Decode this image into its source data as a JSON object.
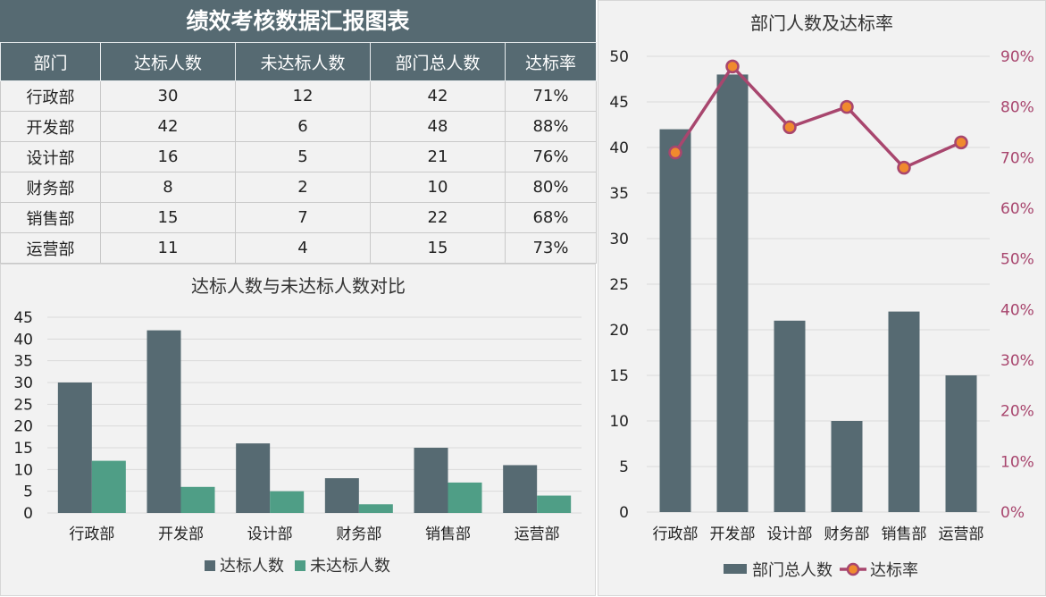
{
  "report": {
    "title": "绩效考核数据汇报图表",
    "headers": [
      "部门",
      "达标人数",
      "未达标人数",
      "部门总人数",
      "达标率"
    ],
    "rows": [
      [
        "行政部",
        "30",
        "12",
        "42",
        "71%"
      ],
      [
        "开发部",
        "42",
        "6",
        "48",
        "88%"
      ],
      [
        "设计部",
        "16",
        "5",
        "21",
        "76%"
      ],
      [
        "财务部",
        "8",
        "2",
        "10",
        "80%"
      ],
      [
        "销售部",
        "15",
        "7",
        "22",
        "68%"
      ],
      [
        "运营部",
        "11",
        "4",
        "15",
        "73%"
      ]
    ]
  },
  "colors": {
    "dark": "#566a72",
    "green": "#4f9e86",
    "rate_line": "#a8466e",
    "rate_marker": "#f08a2e",
    "grid": "#d9d9d9"
  },
  "chart_data": [
    {
      "type": "bar",
      "title": "达标人数与未达标人数对比",
      "categories": [
        "行政部",
        "开发部",
        "设计部",
        "财务部",
        "销售部",
        "运营部"
      ],
      "series": [
        {
          "name": "达标人数",
          "values": [
            30,
            42,
            16,
            8,
            15,
            11
          ]
        },
        {
          "name": "未达标人数",
          "values": [
            12,
            6,
            5,
            2,
            7,
            4
          ]
        }
      ],
      "ylim": [
        0,
        45
      ],
      "yticks": [
        0,
        5,
        10,
        15,
        20,
        25,
        30,
        35,
        40,
        45
      ],
      "grid": true,
      "legend": "bottom"
    },
    {
      "type": "bar",
      "title": "部门人数及达标率",
      "categories": [
        "行政部",
        "开发部",
        "设计部",
        "财务部",
        "销售部",
        "运营部"
      ],
      "series": [
        {
          "name": "部门总人数",
          "type": "bar",
          "axis": "left",
          "values": [
            42,
            48,
            21,
            10,
            22,
            15
          ]
        },
        {
          "name": "达标率",
          "type": "line",
          "axis": "right",
          "values": [
            0.71,
            0.88,
            0.76,
            0.8,
            0.68,
            0.73
          ]
        }
      ],
      "ylim": [
        0,
        50
      ],
      "yticks": [
        0,
        5,
        10,
        15,
        20,
        25,
        30,
        35,
        40,
        45,
        50
      ],
      "y2lim": [
        0,
        0.9
      ],
      "y2ticks": [
        "0%",
        "10%",
        "20%",
        "30%",
        "40%",
        "50%",
        "60%",
        "70%",
        "80%",
        "90%"
      ],
      "grid": true,
      "legend": "bottom"
    }
  ]
}
